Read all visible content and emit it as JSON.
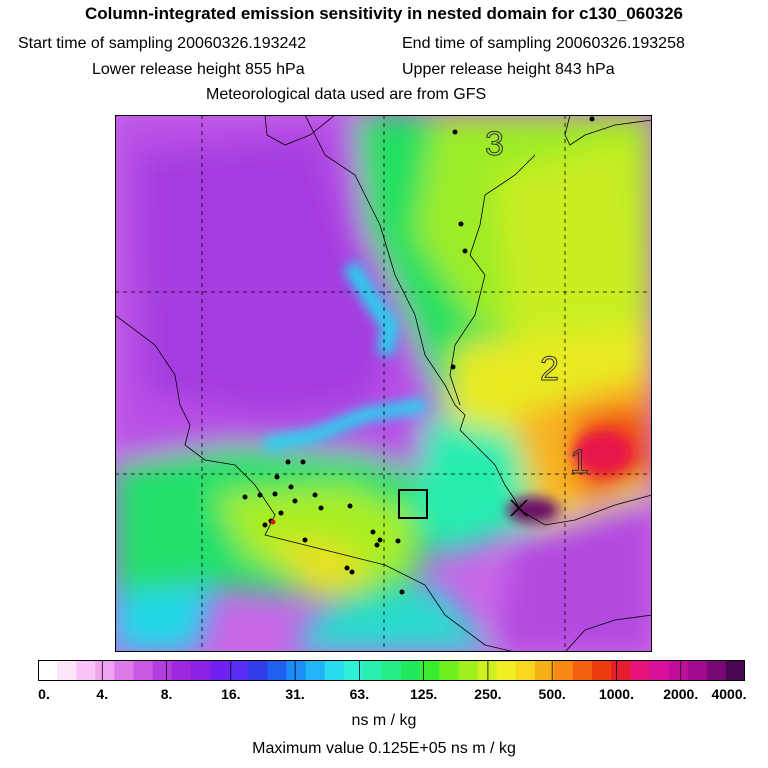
{
  "header": {
    "title": "Column-integrated emission sensitivity in nested domain for c130_060326",
    "start": "Start time of sampling 20060326.193242",
    "end": "End time of sampling 20060326.193258",
    "lower": "Lower release height  855 hPa",
    "upper": "Upper release height  843 hPa",
    "met": "Meteorological data used are from GFS"
  },
  "map": {
    "labels": [
      "3",
      "2",
      "1"
    ]
  },
  "colorbar": {
    "ticks": [
      "0.",
      "4.",
      "8.",
      "16.",
      "31.",
      "63.",
      "125.",
      "250.",
      "500.",
      "1000.",
      "2000.",
      "4000."
    ],
    "colors": [
      "#ffffff",
      "#fde4fb",
      "#f7c4f5",
      "#f0a3f1",
      "#dd7ae9",
      "#c958e3",
      "#b43ddf",
      "#9e28dd",
      "#8d20e6",
      "#7020f0",
      "#5a2cf6",
      "#2f3ee6",
      "#2060f0",
      "#1c8cf6",
      "#22b4f6",
      "#2adcef",
      "#2ff0d8",
      "#28f0b0",
      "#24ee84",
      "#20e85a",
      "#3aec30",
      "#6ef020",
      "#a0f020",
      "#cff020",
      "#f0f020",
      "#f8d81c",
      "#f8b018",
      "#f88814",
      "#f46010",
      "#ee3a10",
      "#e81c30",
      "#e8147a",
      "#d8109a",
      "#c00e9a",
      "#a00a8c",
      "#780878",
      "#4a0650"
    ],
    "units": "ns m / kg"
  },
  "footer": {
    "max_value": "Maximum value  0.125E+05 ns m / kg"
  }
}
